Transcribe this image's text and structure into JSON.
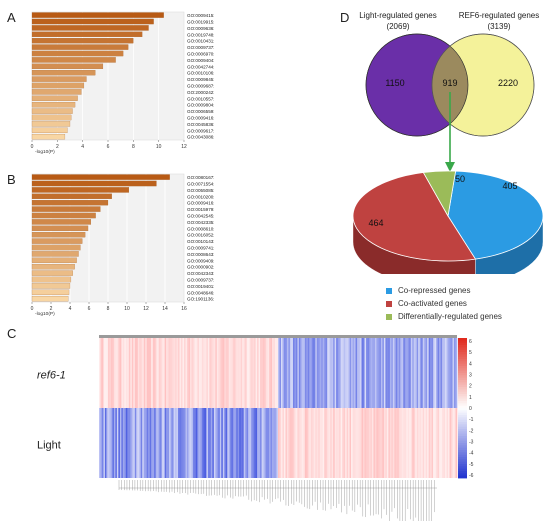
{
  "panels": {
    "a": "A",
    "b": "B",
    "c": "C",
    "d": "D"
  },
  "colors": {
    "bar_start": "#b85a14",
    "bar_end": "#f8d6a4",
    "venn_left": "#6a2fa8",
    "venn_right": "#f4f29a",
    "venn_overlap": "#9b8a5e",
    "pie_blue": "#2b9be3",
    "pie_red": "#bf4240",
    "pie_green": "#9bbb59",
    "heat_red": "#e63a2c",
    "heat_blue": "#3a4fd8"
  },
  "chart_data": [
    {
      "type": "bar",
      "orientation": "horizontal",
      "panel": "A",
      "xlabel": "-log10(P)",
      "xticks": [
        "0",
        "2",
        "4",
        "6",
        "8",
        "10",
        "12"
      ],
      "xlim": [
        0,
        12
      ],
      "categories": [
        "GO:0009415: response to water",
        "GO:0019915: lipid storage",
        "GO:0009636: response to toxic substance",
        "GO:0019748: secondary metabolic process",
        "GO:0010431: seed maturation",
        "GO:0009737: response to abscisic acid",
        "GO:0006970: response to osmotic stress",
        "GO:0009404: toxin metabolic process",
        "GO:0042744: hydrogen peroxide catabolic process",
        "GO:0010106: cellular response to iron ion starvation",
        "GO:0009845: seed germination",
        "GO:0009687: abscisic acid metabolic process",
        "GO:2000242: negative regulation of reproductive process",
        "GO:0010557: positive regulation of macromolecule biosynthetic process",
        "GO:0009804: coumarin metabolic process",
        "GO:0006559: L-phenylalanine catabolic process",
        "GO:0009416: response to light stimulus",
        "GO:0045836: positive regulation of meiotic nuclear division",
        "GO:0009617: response to bacterium",
        "GO:0043086: negative regulation of catalytic activity"
      ],
      "values": [
        10.4,
        9.6,
        9.2,
        8.7,
        8.0,
        7.6,
        7.2,
        6.6,
        5.6,
        5.0,
        4.3,
        4.1,
        3.9,
        3.6,
        3.4,
        3.2,
        3.1,
        3.0,
        2.8,
        2.6
      ]
    },
    {
      "type": "bar",
      "orientation": "horizontal",
      "panel": "B",
      "xlabel": "-log10(P)",
      "xticks": [
        "0",
        "2",
        "4",
        "6",
        "8",
        "10",
        "12",
        "14",
        "16"
      ],
      "xlim": [
        0,
        16
      ],
      "categories": [
        "GO:0080167: response to karrikin",
        "GO:0071554: cell wall organization or biogenesis",
        "GO:0055085: transmembrane transport",
        "GO:0010200: response to chitin",
        "GO:0009416: response to light stimulus",
        "GO:0015979: photosynthesis",
        "GO:0042545: cell wall modification",
        "GO:0042335: cuticle development",
        "GO:0008610: lipid biosynthetic process",
        "GO:0016052: carbohydrate catabolic process",
        "GO:0010143: cutin biosynthetic process",
        "GO:0009741: response to brassinosteroid",
        "GO:0008643: carbohydrate transport",
        "GO:0009409: response to cold",
        "GO:0000902: cell morphogenesis",
        "GO:0042343: indole glucosinolate metabolic process",
        "GO:0009737: response to abscisic acid",
        "GO:0019401: alditol biosynthetic process",
        "GO:0048646: anatomical structure formation involved in morphogenesis",
        "GO:1901136: carbohydrate derivative catabolic process"
      ],
      "values": [
        14.5,
        13.1,
        10.2,
        8.4,
        8.0,
        7.2,
        6.7,
        6.2,
        5.9,
        5.6,
        5.3,
        5.1,
        4.9,
        4.7,
        4.5,
        4.3,
        4.1,
        4.0,
        3.9,
        3.8
      ]
    },
    {
      "type": "heatmap",
      "panel": "C",
      "rows": [
        "ref6-1",
        "Light"
      ],
      "colorbar_ticks": [
        "6",
        "5",
        "4",
        "3",
        "2",
        "1",
        "0",
        "-1",
        "-2",
        "-3",
        "-4",
        "-5",
        "-6"
      ],
      "colorbar_range": [
        -6,
        6
      ],
      "columns_split": [
        0.5,
        0.5
      ],
      "row_pattern": [
        [
          "positive",
          "negative"
        ],
        [
          "negative",
          "positive"
        ]
      ]
    },
    {
      "type": "venn",
      "panel": "D",
      "sets": [
        {
          "title": "Light-regulated genes",
          "count_label": "(2069)",
          "only": "1150"
        },
        {
          "title": "REF6-regulated genes",
          "count_label": "(3139)",
          "only": "2220"
        }
      ],
      "overlap": "919"
    },
    {
      "type": "pie",
      "panel": "D",
      "labels": [
        "Co-repressed genes",
        "Co-activated genes",
        "Differentially-regulated genes"
      ],
      "values": [
        405,
        464,
        50
      ]
    }
  ]
}
